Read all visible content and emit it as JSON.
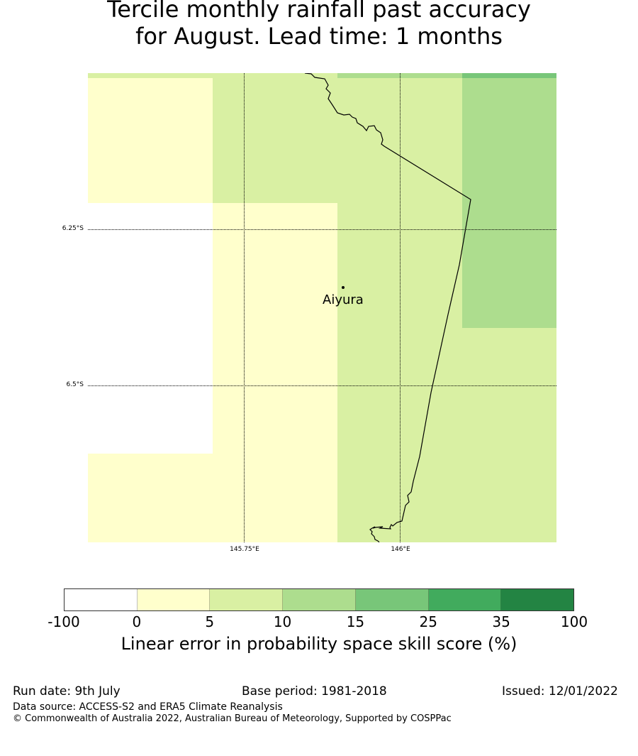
{
  "title": {
    "line1": "Tercile monthly rainfall past accuracy",
    "line2": "for August. Lead time: 1 months"
  },
  "map": {
    "lat_labels": [
      "6.25°S",
      "6.5°S"
    ],
    "lon_labels": [
      "145.75°E",
      "146°E"
    ],
    "town": "Aiyura"
  },
  "colorbar": {
    "ticks": [
      "-100",
      "0",
      "5",
      "10",
      "15",
      "25",
      "35",
      "100"
    ],
    "colors": [
      "#ffffff",
      "#ffffcc",
      "#d9f0a3",
      "#addd8e",
      "#78c679",
      "#41ab5d",
      "#238443"
    ],
    "label": "Linear error in probability space skill score (%)"
  },
  "footer": {
    "run_date": "Run date: 9th July",
    "base_period": "Base period: 1981-2018",
    "issued": "Issued: 12/01/2022",
    "data_source": "Data source: ACCESS-S2 and ERA5 Climate Reanalysis",
    "copyright": "© Commonwealth of Australia 2022, Australian Bureau of Meteorology, Supported by COSPPac"
  }
}
